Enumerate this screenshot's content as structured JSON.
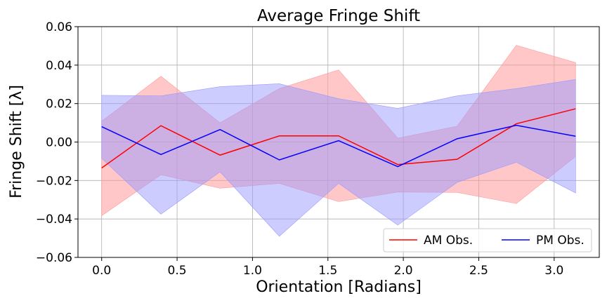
{
  "chart_data": {
    "type": "line",
    "title": "Average Fringe Shift",
    "xlabel": "Orientation [Radians]",
    "ylabel": "Fringe Shift [λ]",
    "xlim": [
      -0.157,
      3.299
    ],
    "ylim": [
      -0.06,
      0.06
    ],
    "xticks": [
      0.0,
      0.5,
      1.0,
      1.5,
      2.0,
      2.5,
      3.0
    ],
    "xtick_labels": [
      "0.0",
      "0.5",
      "1.0",
      "1.5",
      "2.0",
      "2.5",
      "3.0"
    ],
    "yticks": [
      -0.06,
      -0.04,
      -0.02,
      0.0,
      0.02,
      0.04,
      0.06
    ],
    "ytick_labels": [
      "−0.06",
      "−0.04",
      "−0.02",
      "0.00",
      "0.02",
      "0.04",
      "0.06"
    ],
    "grid": true,
    "legend_position": "lower-right",
    "x": [
      0.0,
      0.393,
      0.785,
      1.178,
      1.571,
      1.963,
      2.356,
      2.749,
      3.142
    ],
    "series": [
      {
        "name": "AM Obs.",
        "color": "#ff0000",
        "band_color": "#ff9999",
        "values": [
          -0.0135,
          0.0085,
          -0.0068,
          0.0032,
          0.0032,
          -0.0117,
          -0.009,
          0.0095,
          0.0173
        ],
        "lower": [
          -0.0383,
          -0.017,
          -0.024,
          -0.0215,
          -0.031,
          -0.026,
          -0.0262,
          -0.032,
          -0.0075
        ],
        "upper": [
          0.0108,
          0.0342,
          0.01,
          0.0278,
          0.0375,
          0.002,
          0.0082,
          0.0503,
          0.0413
        ]
      },
      {
        "name": "PM Obs.",
        "color": "#0000ff",
        "band_color": "#9999ff",
        "values": [
          0.008,
          -0.0065,
          0.0065,
          -0.0093,
          0.0007,
          -0.0128,
          0.0017,
          0.0087,
          0.003
        ],
        "lower": [
          -0.0085,
          -0.0375,
          -0.0155,
          -0.049,
          -0.0215,
          -0.0432,
          -0.021,
          -0.0105,
          -0.0265
        ],
        "upper": [
          0.0243,
          0.024,
          0.0288,
          0.0303,
          0.0225,
          0.0175,
          0.024,
          0.0278,
          0.0325
        ]
      }
    ]
  }
}
